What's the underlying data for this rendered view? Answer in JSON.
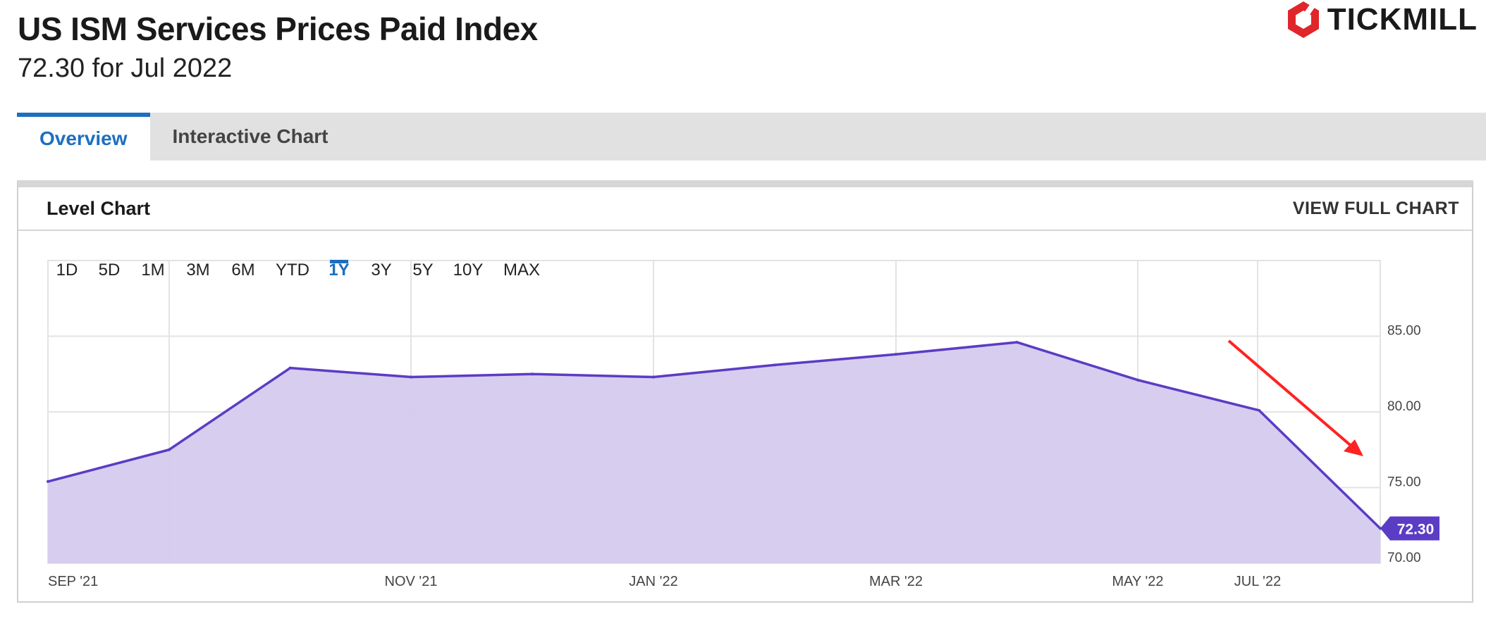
{
  "header": {
    "title": "US ISM Services Prices Paid Index",
    "subtitle": "72.30 for Jul 2022",
    "brand": "TICKMILL"
  },
  "tabs": [
    {
      "label": "Overview",
      "active": true
    },
    {
      "label": "Interactive Chart",
      "active": false
    }
  ],
  "card": {
    "title": "Level Chart",
    "view_link": "VIEW FULL CHART"
  },
  "range_buttons": [
    "1D",
    "5D",
    "1M",
    "3M",
    "6M",
    "YTD",
    "1Y",
    "3Y",
    "5Y",
    "10Y",
    "MAX"
  ],
  "active_range": "1Y",
  "colors": {
    "line": "#5b3cc4",
    "fill": "#d5cbee",
    "accent": "#1d6fbf",
    "annotation_arrow": "#ff2222",
    "brand": "#e0262b"
  },
  "chart_data": {
    "type": "area",
    "x": [
      "2021-08",
      "2021-09",
      "2021-10",
      "2021-11",
      "2021-12",
      "2022-01",
      "2022-02",
      "2022-03",
      "2022-04",
      "2022-05",
      "2022-06",
      "2022-07"
    ],
    "values": [
      75.4,
      77.5,
      82.9,
      82.3,
      82.5,
      82.3,
      83.1,
      83.8,
      84.6,
      82.1,
      80.1,
      72.3
    ],
    "x_ticks": [
      "SEP '21",
      "NOV '21",
      "JAN '22",
      "MAR '22",
      "MAY '22",
      "JUL '22"
    ],
    "y_ticks": [
      "70.00",
      "75.00",
      "80.00",
      "85.00"
    ],
    "ylim": [
      70,
      90
    ],
    "last_value_label": "72.30",
    "grid": true,
    "annotation": "red arrow pointing down toward the latest value"
  }
}
